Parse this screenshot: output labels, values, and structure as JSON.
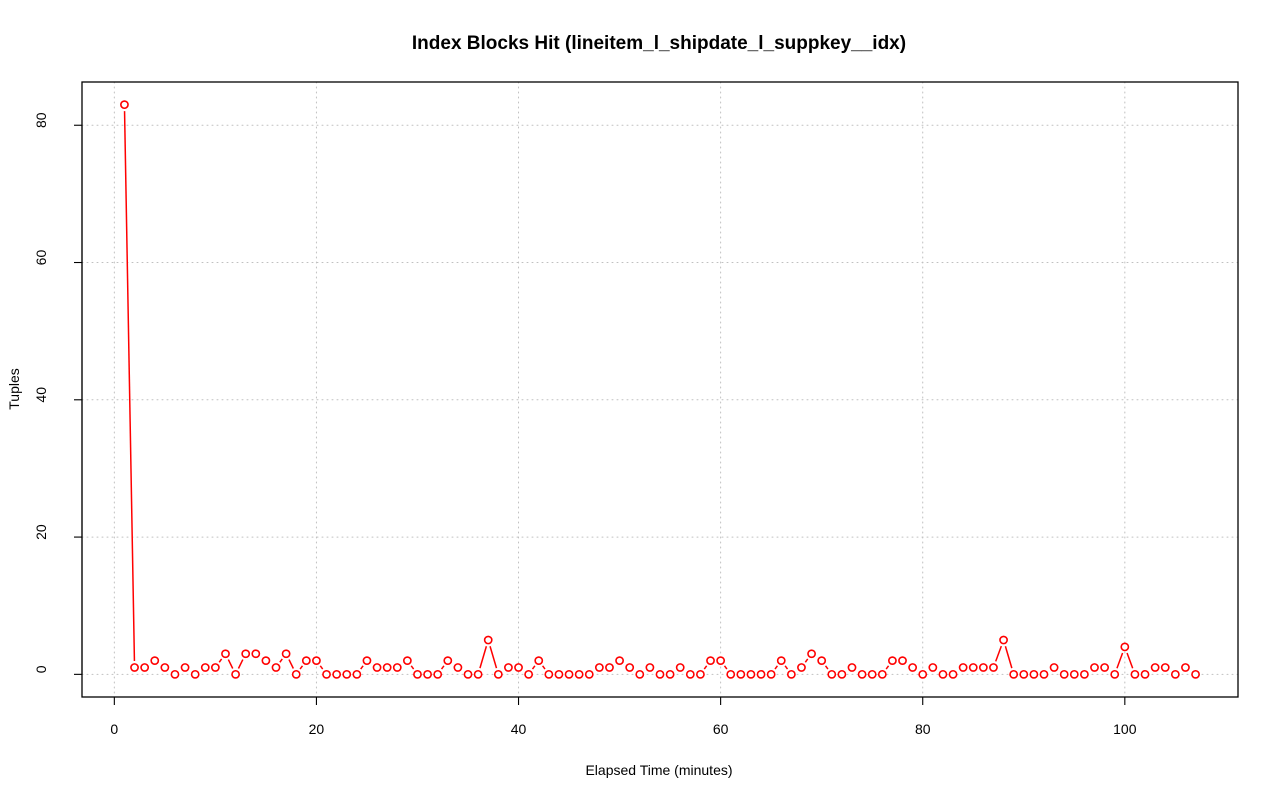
{
  "chart_data": {
    "type": "line",
    "title": "Index Blocks Hit (lineitem_l_shipdate_l_suppkey__idx)",
    "xlabel": "Elapsed Time (minutes)",
    "ylabel": "Tuples",
    "xlim": [
      -3.2,
      111.2
    ],
    "ylim": [
      -3.3,
      86.3
    ],
    "x_ticks": [
      0,
      20,
      40,
      60,
      80,
      100
    ],
    "y_ticks": [
      0,
      20,
      40,
      60,
      80
    ],
    "grid": true,
    "series_color": "#ff0000",
    "x": [
      1,
      2,
      3,
      4,
      5,
      6,
      7,
      8,
      9,
      10,
      11,
      12,
      13,
      14,
      15,
      16,
      17,
      18,
      19,
      20,
      21,
      22,
      23,
      24,
      25,
      26,
      27,
      28,
      29,
      30,
      31,
      32,
      33,
      34,
      35,
      36,
      37,
      38,
      39,
      40,
      41,
      42,
      43,
      44,
      45,
      46,
      47,
      48,
      49,
      50,
      51,
      52,
      53,
      54,
      55,
      56,
      57,
      58,
      59,
      60,
      61,
      62,
      63,
      64,
      65,
      66,
      67,
      68,
      69,
      70,
      71,
      72,
      73,
      74,
      75,
      76,
      77,
      78,
      79,
      80,
      81,
      82,
      83,
      84,
      85,
      86,
      87,
      88,
      89,
      90,
      91,
      92,
      93,
      94,
      95,
      96,
      97,
      98,
      99,
      100,
      101,
      102,
      103,
      104,
      105,
      106,
      107
    ],
    "y": [
      83,
      1,
      1,
      2,
      1,
      0,
      1,
      0,
      1,
      1,
      3,
      0,
      3,
      3,
      2,
      1,
      3,
      0,
      2,
      2,
      0,
      0,
      0,
      0,
      2,
      1,
      1,
      1,
      2,
      0,
      0,
      0,
      2,
      1,
      0,
      0,
      5,
      0,
      1,
      1,
      0,
      2,
      0,
      0,
      0,
      0,
      0,
      1,
      1,
      2,
      1,
      0,
      1,
      0,
      0,
      1,
      0,
      0,
      2,
      2,
      0,
      0,
      0,
      0,
      0,
      2,
      0,
      1,
      3,
      2,
      0,
      0,
      1,
      0,
      0,
      0,
      2,
      2,
      1,
      0,
      1,
      0,
      0,
      1,
      1,
      1,
      1,
      5,
      0,
      0,
      0,
      0,
      1,
      0,
      0,
      0,
      1,
      1,
      0,
      4,
      0,
      0,
      1,
      1,
      0,
      1,
      0
    ]
  }
}
